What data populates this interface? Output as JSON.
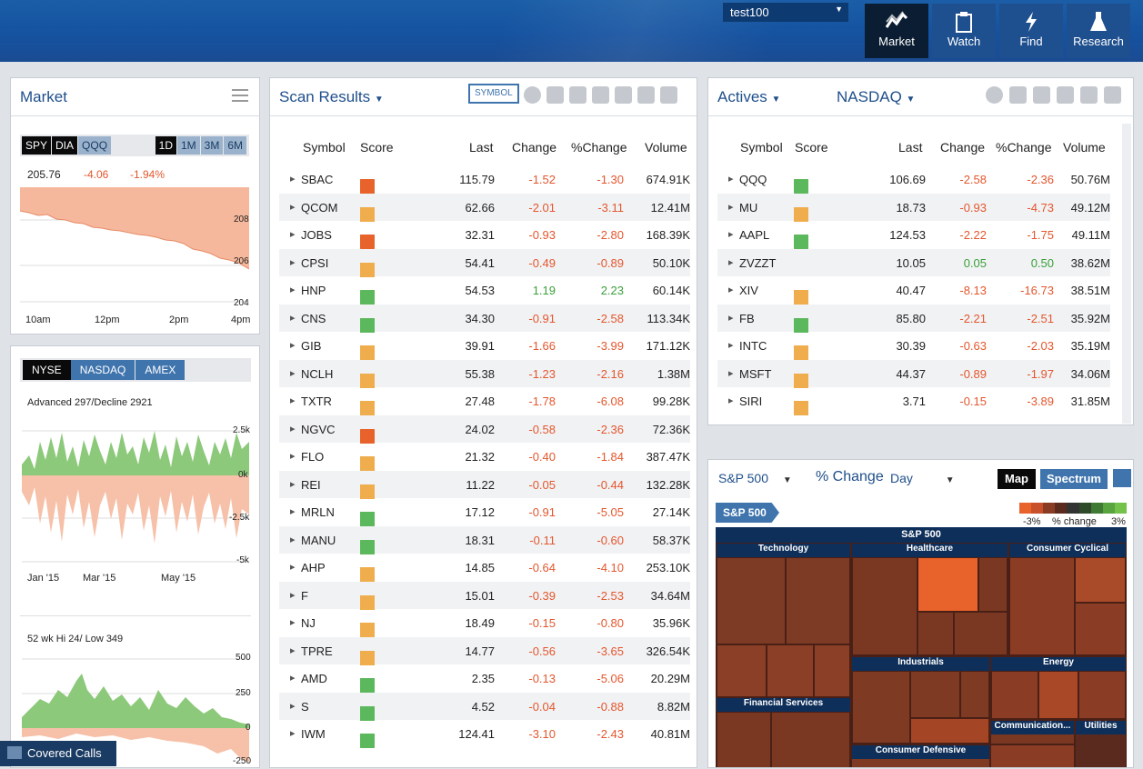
{
  "topbar": {
    "account": "test100",
    "nav": [
      {
        "label": "Market",
        "active": true,
        "icon": "market-chart-icon"
      },
      {
        "label": "Watch",
        "icon": "clipboard-icon"
      },
      {
        "label": "Find",
        "icon": "lightning-icon"
      },
      {
        "label": "Research",
        "icon": "flask-icon"
      }
    ]
  },
  "market": {
    "title": "Market",
    "symbols": [
      "SPY",
      "DIA",
      "QQQ"
    ],
    "ranges": [
      "1D",
      "1M",
      "3M",
      "6M"
    ],
    "price": "205.76",
    "change": "-4.06",
    "pct": "-1.94%",
    "y_ticks": [
      "208",
      "206",
      "204"
    ],
    "x_ticks": [
      "10am",
      "12pm",
      "2pm",
      "4pm"
    ]
  },
  "breadth": {
    "exchanges": [
      "NYSE",
      "NASDAQ",
      "AMEX"
    ],
    "adv_label": "Advanced 297/Decline 2921",
    "adv_ticks": [
      "2.5k",
      "0k",
      "-2.5k",
      "-5k"
    ],
    "x_ticks": [
      "Jan '15",
      "Mar '15",
      "May '15"
    ],
    "hilo_label": "52 wk Hi 24/ Low 349",
    "hilo_ticks": [
      "500",
      "250",
      "0",
      "-250"
    ]
  },
  "covered_calls": {
    "label": "Covered Calls"
  },
  "scan": {
    "title": "Scan Results",
    "symbol_btn": "SYMBOL",
    "cols": [
      "Symbol",
      "Score",
      "Last",
      "Change",
      "%Change",
      "Volume"
    ],
    "rows": [
      {
        "sym": "SBAC",
        "score": [
          "y",
          "o",
          "g",
          "o"
        ],
        "last": "115.79",
        "chg": "-1.52",
        "pct": "-1.30",
        "vol": "674.91K"
      },
      {
        "sym": "QCOM",
        "score": [
          "o",
          "o",
          "g",
          "y"
        ],
        "last": "62.66",
        "chg": "-2.01",
        "pct": "-3.11",
        "vol": "12.41M"
      },
      {
        "sym": "JOBS",
        "score": [
          "y",
          "g",
          "y",
          "o"
        ],
        "last": "32.31",
        "chg": "-0.93",
        "pct": "-2.80",
        "vol": "168.39K"
      },
      {
        "sym": "CPSI",
        "score": [
          "g",
          "g",
          "y",
          "y"
        ],
        "last": "54.41",
        "chg": "-0.49",
        "pct": "-0.89",
        "vol": "50.10K"
      },
      {
        "sym": "HNP",
        "score": [
          "y",
          "y",
          "y",
          "g"
        ],
        "last": "54.53",
        "chg": "1.19",
        "pct": "2.23",
        "vol": "60.14K"
      },
      {
        "sym": "CNS",
        "score": [
          "o",
          "o",
          "g",
          "g"
        ],
        "last": "34.30",
        "chg": "-0.91",
        "pct": "-2.58",
        "vol": "113.34K"
      },
      {
        "sym": "GIB",
        "score": [
          "o",
          "y",
          "g",
          "y"
        ],
        "last": "39.91",
        "chg": "-1.66",
        "pct": "-3.99",
        "vol": "171.12K"
      },
      {
        "sym": "NCLH",
        "score": [
          "g",
          "g",
          "g",
          "y"
        ],
        "last": "55.38",
        "chg": "-1.23",
        "pct": "-2.16",
        "vol": "1.38M"
      },
      {
        "sym": "TXTR",
        "score": [
          "o",
          "y",
          "g",
          "y"
        ],
        "last": "27.48",
        "chg": "-1.78",
        "pct": "-6.08",
        "vol": "99.28K"
      },
      {
        "sym": "NGVC",
        "score": [
          "g",
          "y",
          "y",
          "o"
        ],
        "last": "24.02",
        "chg": "-0.58",
        "pct": "-2.36",
        "vol": "72.36K"
      },
      {
        "sym": "FLO",
        "score": [
          "y",
          "g",
          "g",
          "y"
        ],
        "last": "21.32",
        "chg": "-0.40",
        "pct": "-1.84",
        "vol": "387.47K"
      },
      {
        "sym": "REI",
        "score": [
          "o",
          "g",
          "g",
          "y"
        ],
        "last": "11.22",
        "chg": "-0.05",
        "pct": "-0.44",
        "vol": "132.28K"
      },
      {
        "sym": "MRLN",
        "score": [
          "o",
          "g",
          "g",
          "g"
        ],
        "last": "17.12",
        "chg": "-0.91",
        "pct": "-5.05",
        "vol": "27.14K"
      },
      {
        "sym": "MANU",
        "score": [
          "y",
          "y",
          "y",
          "g"
        ],
        "last": "18.31",
        "chg": "-0.11",
        "pct": "-0.60",
        "vol": "58.37K"
      },
      {
        "sym": "AHP",
        "score": [
          "y",
          "o",
          "g",
          "y"
        ],
        "last": "14.85",
        "chg": "-0.64",
        "pct": "-4.10",
        "vol": "253.10K"
      },
      {
        "sym": "F",
        "score": [
          "g",
          "g",
          "g",
          "y"
        ],
        "last": "15.01",
        "chg": "-0.39",
        "pct": "-2.53",
        "vol": "34.64M"
      },
      {
        "sym": "NJ",
        "score": [
          "g",
          "y",
          "y",
          "y"
        ],
        "last": "18.49",
        "chg": "-0.15",
        "pct": "-0.80",
        "vol": "35.96K"
      },
      {
        "sym": "TPRE",
        "score": [
          "g",
          "g",
          "g",
          "y"
        ],
        "last": "14.77",
        "chg": "-0.56",
        "pct": "-3.65",
        "vol": "326.54K"
      },
      {
        "sym": "AMD",
        "score": [
          "g",
          "y",
          "g",
          "g"
        ],
        "last": "2.35",
        "chg": "-0.13",
        "pct": "-5.06",
        "vol": "20.29M"
      },
      {
        "sym": "S",
        "score": [
          "o",
          "o",
          "g",
          "g"
        ],
        "last": "4.52",
        "chg": "-0.04",
        "pct": "-0.88",
        "vol": "8.82M"
      },
      {
        "sym": "IWM",
        "score": [
          "g",
          "g"
        ],
        "last": "124.41",
        "chg": "-3.10",
        "pct": "-2.43",
        "vol": "40.81M"
      }
    ]
  },
  "actives": {
    "title": "Actives",
    "exchange": "NASDAQ",
    "cols": [
      "Symbol",
      "Score",
      "Last",
      "Change",
      "%Change",
      "Volume"
    ],
    "rows": [
      {
        "sym": "QQQ",
        "score": [
          "y",
          "g"
        ],
        "last": "106.69",
        "chg": "-2.58",
        "pct": "-2.36",
        "vol": "50.76M"
      },
      {
        "sym": "MU",
        "score": [
          "o",
          "y",
          "y",
          "y"
        ],
        "last": "18.73",
        "chg": "-0.93",
        "pct": "-4.73",
        "vol": "49.12M"
      },
      {
        "sym": "AAPL",
        "score": [
          "o",
          "o",
          "y",
          "g"
        ],
        "last": "124.53",
        "chg": "-2.22",
        "pct": "-1.75",
        "vol": "49.11M"
      },
      {
        "sym": "ZVZZT",
        "score": [],
        "last": "10.05",
        "chg": "0.05",
        "pct": "0.50",
        "vol": "38.62M"
      },
      {
        "sym": "XIV",
        "score": [
          "g",
          "o",
          "o",
          "y"
        ],
        "last": "40.47",
        "chg": "-8.13",
        "pct": "-16.73",
        "vol": "38.51M"
      },
      {
        "sym": "FB",
        "score": [
          "g",
          "y",
          "g",
          "g"
        ],
        "last": "85.80",
        "chg": "-2.21",
        "pct": "-2.51",
        "vol": "35.92M"
      },
      {
        "sym": "INTC",
        "score": [
          "o",
          "y",
          "y",
          "y"
        ],
        "last": "30.39",
        "chg": "-0.63",
        "pct": "-2.03",
        "vol": "35.19M"
      },
      {
        "sym": "MSFT",
        "score": [
          "o",
          "o",
          "y",
          "y"
        ],
        "last": "44.37",
        "chg": "-0.89",
        "pct": "-1.97",
        "vol": "34.06M"
      },
      {
        "sym": "SIRI",
        "score": [
          "g",
          "g",
          "g",
          "y"
        ],
        "last": "3.71",
        "chg": "-0.15",
        "pct": "-3.89",
        "vol": "31.85M"
      }
    ]
  },
  "heatmap": {
    "index": "S&P 500",
    "metric": "% Change",
    "period": "Day",
    "map_btn": "Map",
    "spectrum_btn": "Spectrum",
    "tag": "S&P 500",
    "legend_low": "-3%",
    "legend_mid": "% change",
    "legend_high": "3%",
    "sectors": [
      "Technology",
      "Healthcare",
      "Consumer Cyclical",
      "Industrials",
      "Energy",
      "Financial Services",
      "Communication...",
      "Utilities",
      "Consumer Defensive"
    ],
    "root": "S&P 500"
  },
  "colors": {
    "accent": "#1f4f8b",
    "negative": "#e4572e",
    "positive": "#3aa03a",
    "score_green": "#5cb85c",
    "score_yellow": "#f0ad4e",
    "score_orange": "#e8622c"
  }
}
